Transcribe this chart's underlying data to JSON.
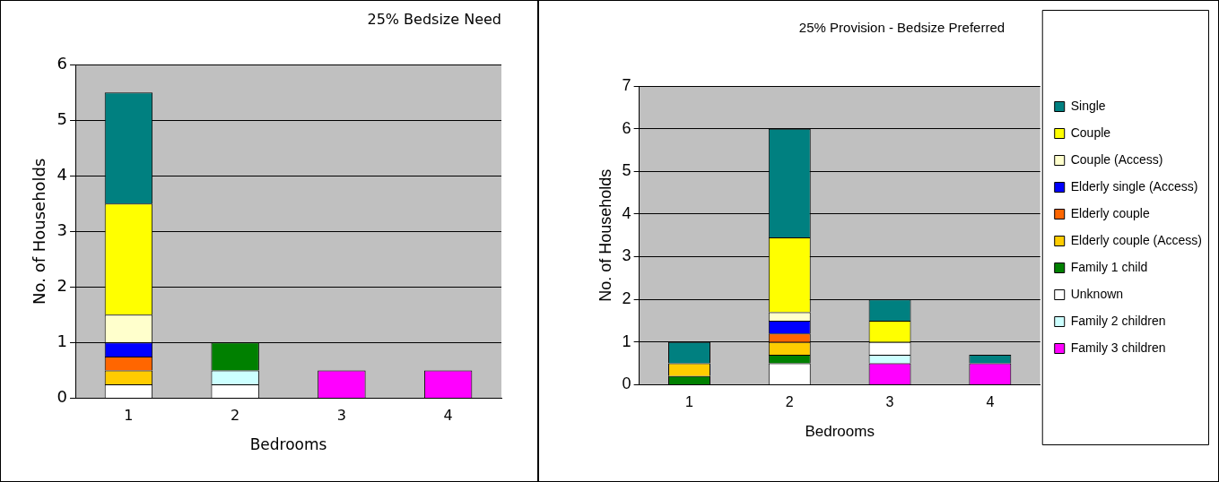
{
  "chart_data": [
    {
      "type": "bar",
      "title": "25% Bedsize Need",
      "xlabel": "Bedrooms",
      "ylabel": "No. of Households",
      "categories": [
        "1",
        "2",
        "3",
        "4"
      ],
      "stacked": true,
      "ylim": [
        0,
        6
      ],
      "yticks": [
        0,
        1,
        2,
        3,
        4,
        5,
        6
      ],
      "grid": "y",
      "legend": false,
      "series": [
        {
          "color": "#ffffff",
          "values": [
            0.25,
            0.25,
            null,
            null
          ]
        },
        {
          "color": "#ff00ff",
          "values": [
            null,
            null,
            0.5,
            0.5
          ]
        },
        {
          "color": "#ccffff",
          "values": [
            null,
            0.25,
            null,
            null
          ]
        },
        {
          "color": "#008000",
          "values": [
            null,
            0.5,
            null,
            null
          ]
        },
        {
          "color": "#ffcc00",
          "values": [
            0.25,
            null,
            null,
            null
          ]
        },
        {
          "color": "#ff6600",
          "values": [
            0.25,
            null,
            null,
            null
          ]
        },
        {
          "color": "#0000ff",
          "values": [
            0.25,
            null,
            null,
            null
          ]
        },
        {
          "color": "#ffffcc",
          "values": [
            0.5,
            null,
            null,
            null
          ]
        },
        {
          "color": "#ffff00",
          "values": [
            2,
            null,
            null,
            null
          ]
        },
        {
          "color": "#008080",
          "values": [
            2,
            null,
            null,
            null
          ]
        }
      ]
    },
    {
      "type": "bar",
      "title": "25% Provision - Bedsize Preferred",
      "xlabel": "Bedrooms",
      "ylabel": "No. of Households",
      "categories": [
        "1",
        "2",
        "3",
        "4"
      ],
      "stacked": true,
      "ylim": [
        0,
        7
      ],
      "yticks": [
        0,
        1,
        2,
        3,
        4,
        5,
        6,
        7
      ],
      "grid": "y",
      "legend": "right",
      "series": [
        {
          "name": "Family 3 children",
          "color": "#ff00ff",
          "values": [
            null,
            null,
            0.5,
            0.5
          ]
        },
        {
          "name": "Family 2 children",
          "color": "#ccffff",
          "values": [
            null,
            null,
            0.2,
            null
          ]
        },
        {
          "name": "Unknown",
          "color": "#ffffff",
          "values": [
            null,
            0.5,
            0.3,
            null
          ]
        },
        {
          "name": "Family 1 child",
          "color": "#008000",
          "values": [
            0.2,
            0.2,
            null,
            null
          ]
        },
        {
          "name": "Elderly couple (Access)",
          "color": "#ffcc00",
          "values": [
            0.3,
            0.3,
            null,
            null
          ]
        },
        {
          "name": "Elderly couple",
          "color": "#ff6600",
          "values": [
            null,
            0.2,
            null,
            null
          ]
        },
        {
          "name": "Elderly single (Access)",
          "color": "#0000ff",
          "values": [
            null,
            0.3,
            null,
            null
          ]
        },
        {
          "name": "Couple (Access)",
          "color": "#ffffcc",
          "values": [
            null,
            0.2,
            null,
            null
          ]
        },
        {
          "name": "Couple",
          "color": "#ffff00",
          "values": [
            null,
            1.75,
            0.5,
            null
          ]
        },
        {
          "name": "Single",
          "color": "#008080",
          "values": [
            0.5,
            2.55,
            0.5,
            0.2
          ]
        }
      ]
    }
  ]
}
